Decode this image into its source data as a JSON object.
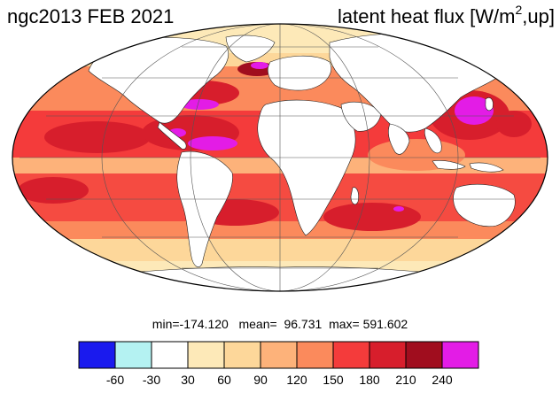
{
  "title": {
    "left": "ngc2013 FEB 2021",
    "right_main": "latent heat flux [W/m",
    "right_sup": "2",
    "right_tail": ",up]"
  },
  "stats": {
    "min_label": "min=",
    "min": "-174.120",
    "mean_label": "mean=",
    "mean": "96.731",
    "max_label": "max=",
    "max": "591.602"
  },
  "colorbar": {
    "colors": [
      "#1a1aee",
      "#b4f2f2",
      "#ffffff",
      "#fde9b8",
      "#fdd79a",
      "#fdb27a",
      "#fb8a5c",
      "#f43b3b",
      "#d71e2c",
      "#a00d1e",
      "#e31ce6"
    ],
    "labels": [
      "-60",
      "-30",
      "30",
      "60",
      "90",
      "120",
      "150",
      "180",
      "210",
      "240"
    ]
  }
}
